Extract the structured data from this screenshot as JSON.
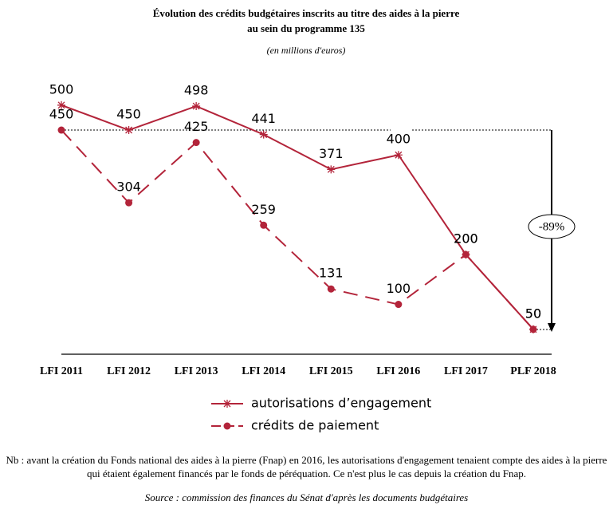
{
  "chart_data": {
    "type": "line",
    "title": [
      "Évolution des crédits budgétaires inscrits au titre des aides à la pierre",
      "au sein du programme 135"
    ],
    "subtitle": "(en millions d'euros)",
    "categories": [
      "LFI 2011",
      "LFI 2012",
      "LFI 2013",
      "LFI 2014",
      "LFI 2015",
      "LFI 2016",
      "LFI 2017",
      "PLF 2018"
    ],
    "series": [
      {
        "name": "autorisations d’engagement",
        "color": "#b3243a",
        "marker": "star",
        "dash": "solid",
        "values": [
          500,
          450,
          498,
          441,
          371,
          400,
          200,
          50
        ]
      },
      {
        "name": "crédits de paiement",
        "color": "#b3243a",
        "marker": "circle",
        "dash": "long-dash",
        "values": [
          450,
          304,
          425,
          259,
          131,
          100,
          200,
          50
        ]
      }
    ],
    "annotation": "-89%",
    "note": "Nb : avant la création du Fonds national des aides à la pierre (Fnap) en 2016, les autorisations d'engagement tenaient compte des aides à la pierre qui étaient également financés par le fonds de péréquation. Ce n'est plus le cas depuis la création du Fnap.",
    "source": "Source : commission des finances du Sénat d'après les documents budgétaires"
  }
}
